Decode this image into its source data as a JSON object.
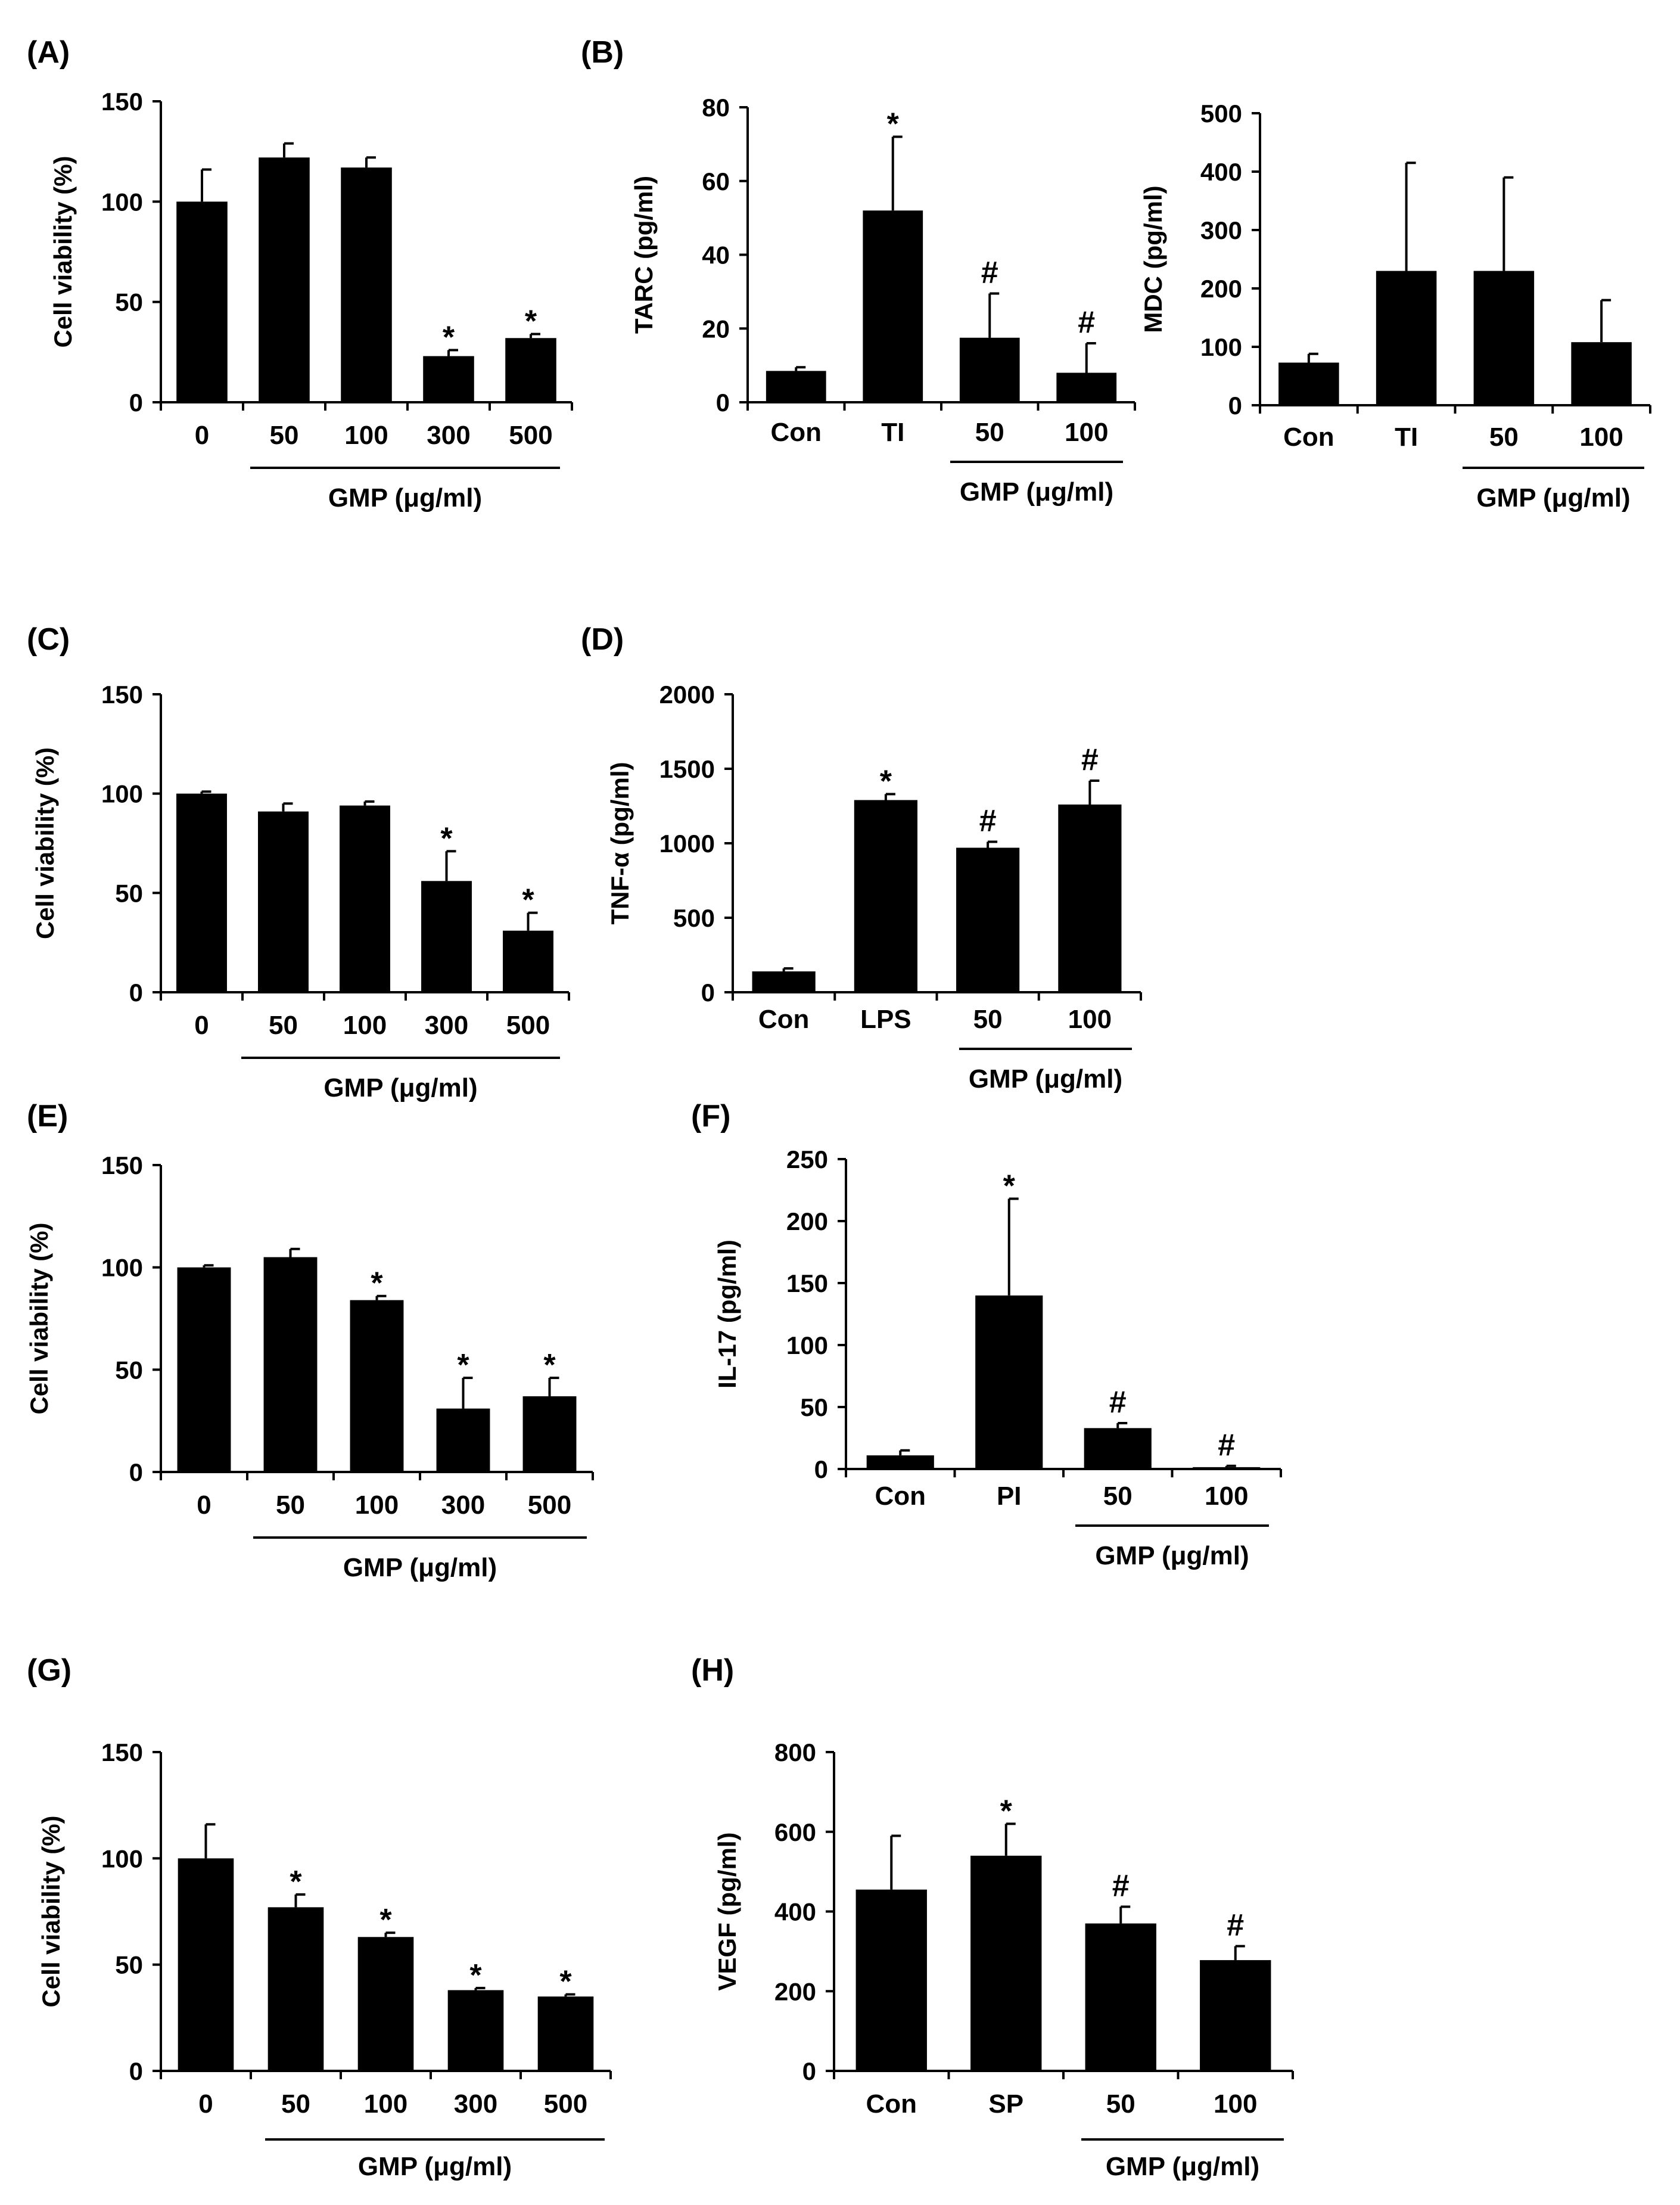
{
  "chart_data": [
    {
      "panel": "(A)",
      "type": "bar",
      "categories": [
        "0",
        "50",
        "100",
        "300",
        "500"
      ],
      "values": [
        100,
        122,
        117,
        23,
        32
      ],
      "errors": [
        16,
        7,
        5,
        3,
        2
      ],
      "significance": [
        "",
        "",
        "",
        "*",
        "*"
      ],
      "ylabel": "Cell viability  (%)",
      "ylim": [
        0,
        150
      ],
      "yticks": [
        0,
        50,
        100,
        150
      ],
      "group_label": "GMP (μg/ml)",
      "group_range": [
        1,
        4
      ]
    },
    {
      "panel": "(B)",
      "type": "bar",
      "categories": [
        "Con",
        "TI",
        "50",
        "100"
      ],
      "values": [
        8.5,
        52,
        17.5,
        8
      ],
      "errors": [
        1,
        20,
        12,
        8
      ],
      "significance": [
        "",
        "*",
        "#",
        "#"
      ],
      "ylabel": "TARC (pg/ml)",
      "ylim": [
        0,
        80
      ],
      "yticks": [
        0,
        20,
        40,
        60,
        80
      ],
      "group_label": "GMP (μg/ml)",
      "group_range": [
        2,
        3
      ]
    },
    {
      "panel": "",
      "type": "bar",
      "categories": [
        "Con",
        "TI",
        "50",
        "100"
      ],
      "values": [
        73,
        230,
        230,
        108
      ],
      "errors": [
        15,
        185,
        160,
        72
      ],
      "significance": [
        "",
        "",
        "",
        ""
      ],
      "ylabel": "MDC (pg/ml)",
      "ylim": [
        0,
        500
      ],
      "yticks": [
        0,
        100,
        200,
        300,
        400,
        500
      ],
      "group_label": "GMP (μg/ml)",
      "group_range": [
        2,
        3
      ]
    },
    {
      "panel": "(C)",
      "type": "bar",
      "categories": [
        "0",
        "50",
        "100",
        "300",
        "500"
      ],
      "values": [
        100,
        91,
        94,
        56,
        31
      ],
      "errors": [
        1,
        4,
        2,
        15,
        9
      ],
      "significance": [
        "",
        "",
        "",
        "*",
        "*"
      ],
      "ylabel": "Cell viability  (%)",
      "ylim": [
        0,
        150
      ],
      "yticks": [
        0,
        50,
        100,
        150
      ],
      "group_label": "GMP (μg/ml)",
      "group_range": [
        1,
        4
      ]
    },
    {
      "panel": "(D)",
      "type": "bar",
      "categories": [
        "Con",
        "LPS",
        "50",
        "100"
      ],
      "values": [
        140,
        1290,
        970,
        1260
      ],
      "errors": [
        20,
        40,
        40,
        160
      ],
      "significance": [
        "",
        "*",
        "#",
        "#"
      ],
      "ylabel": "TNF-α (pg/ml)",
      "ylim": [
        0,
        2000
      ],
      "yticks": [
        0,
        500,
        1000,
        1500,
        2000
      ],
      "group_label": "GMP (μg/ml)",
      "group_range": [
        2,
        3
      ]
    },
    {
      "panel": "(E)",
      "type": "bar",
      "categories": [
        "0",
        "50",
        "100",
        "300",
        "500"
      ],
      "values": [
        100,
        105,
        84,
        31,
        37
      ],
      "errors": [
        1,
        4,
        2,
        15,
        9
      ],
      "significance": [
        "",
        "",
        "*",
        "*",
        "*"
      ],
      "ylabel": "Cell viability  (%)",
      "ylim": [
        0,
        150
      ],
      "yticks": [
        0,
        50,
        100,
        150
      ],
      "group_label": "GMP (μg/ml)",
      "group_range": [
        1,
        4
      ]
    },
    {
      "panel": "(F)",
      "type": "bar",
      "categories": [
        "Con",
        "PI",
        "50",
        "100"
      ],
      "values": [
        11,
        140,
        33,
        1.5
      ],
      "errors": [
        4,
        78,
        4,
        1
      ],
      "significance": [
        "",
        "*",
        "#",
        "#"
      ],
      "ylabel": "IL-17 (pg/ml)",
      "ylim": [
        0,
        250
      ],
      "yticks": [
        0,
        50,
        100,
        150,
        200,
        250
      ],
      "group_label": "GMP (μg/ml)",
      "group_range": [
        2,
        3
      ]
    },
    {
      "panel": "(G)",
      "type": "bar",
      "categories": [
        "0",
        "50",
        "100",
        "300",
        "500"
      ],
      "values": [
        100,
        77,
        63,
        38,
        35
      ],
      "errors": [
        16,
        6,
        2,
        1,
        1
      ],
      "significance": [
        "",
        "*",
        "*",
        "*",
        "*"
      ],
      "ylabel": "Cell viability  (%)",
      "ylim": [
        0,
        150
      ],
      "yticks": [
        0,
        50,
        100,
        150
      ],
      "group_label": "GMP (μg/ml)",
      "group_range": [
        1,
        4
      ]
    },
    {
      "panel": "(H)",
      "type": "bar",
      "categories": [
        "Con",
        "SP",
        "50",
        "100"
      ],
      "values": [
        455,
        540,
        370,
        278
      ],
      "errors": [
        135,
        80,
        42,
        35
      ],
      "significance": [
        "",
        "*",
        "#",
        "#"
      ],
      "ylabel": "VEGF (pg/ml)",
      "ylim": [
        0,
        800
      ],
      "yticks": [
        0,
        200,
        400,
        600,
        800
      ],
      "group_label": "GMP (μg/ml)",
      "group_range": [
        2,
        3
      ]
    }
  ]
}
